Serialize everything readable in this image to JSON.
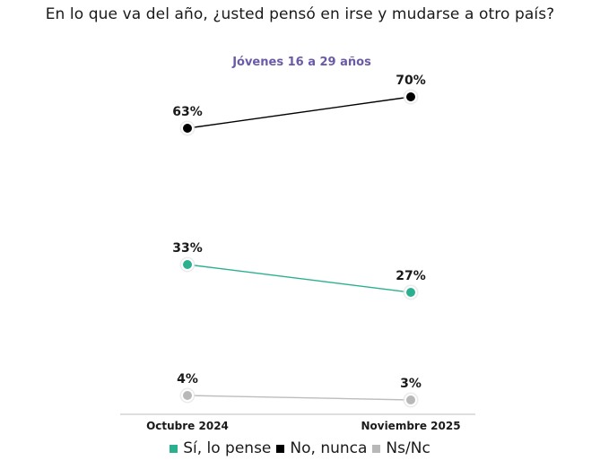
{
  "chart_data": {
    "type": "line",
    "title": "En lo que va del año, ¿usted pensó en irse y mudarse a otro país?",
    "subtitle": "Jóvenes 16 a 29 años",
    "categories": [
      "Octubre 2024",
      "Noviembre 2025"
    ],
    "series": [
      {
        "name": "Sí, lo pense",
        "values": [
          33,
          27
        ],
        "labels": [
          "33%",
          "27%"
        ],
        "color": "#2bb08f"
      },
      {
        "name": "No, nunca",
        "values": [
          63,
          70
        ],
        "labels": [
          "63%",
          "70%"
        ],
        "color": "#000000"
      },
      {
        "name": "Ns/Nc",
        "values": [
          4,
          3
        ],
        "labels": [
          "4%",
          "3%"
        ],
        "color": "#b8b8b8"
      }
    ],
    "grid": false,
    "legend_position": "bottom"
  }
}
